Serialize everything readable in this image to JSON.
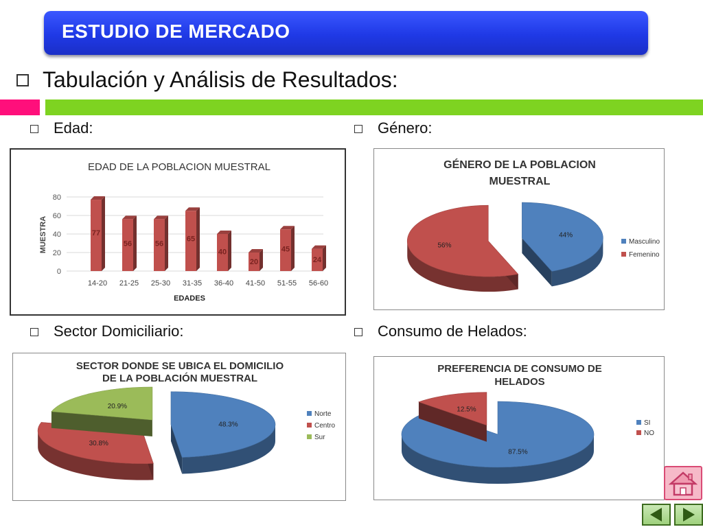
{
  "header": {
    "title": "ESTUDIO DE MERCADO"
  },
  "main": {
    "title": "Tabulación y Análisis de Resultados:"
  },
  "sections": {
    "edad": "Edad:",
    "genero": "Género:",
    "sector": "Sector Domiciliario:",
    "consumo": "Consumo de Helados:"
  },
  "chart_data": [
    {
      "type": "bar",
      "title": "EDAD DE LA POBLACION MUESTRAL",
      "xlabel": "EDADES",
      "ylabel": "MUESTRA",
      "categories": [
        "14-20",
        "21-25",
        "25-30",
        "31-35",
        "36-40",
        "41-50",
        "51-55",
        "56-60"
      ],
      "values": [
        77,
        56,
        56,
        65,
        40,
        20,
        45,
        24
      ],
      "ylim": [
        0,
        80
      ],
      "yticks": [
        0,
        20,
        40,
        60,
        80
      ],
      "grid": true,
      "color": "#c0504d"
    },
    {
      "type": "pie",
      "title_lines": [
        "GÉNERO DE LA POBLACION",
        "MUESTRAL"
      ],
      "slices": [
        {
          "label": "Masculino",
          "value": 44,
          "value_label": "44%",
          "color": "#4f81bd"
        },
        {
          "label": "Femenino",
          "value": 56,
          "value_label": "56%",
          "color": "#c0504d"
        }
      ],
      "legend": "right"
    },
    {
      "type": "pie",
      "title_lines": [
        "SECTOR DONDE SE UBICA EL DOMICILIO",
        "DE LA POBLACIÓN MUESTRAL"
      ],
      "slices": [
        {
          "label": "Norte",
          "value": 48.3,
          "value_label": "48.3%",
          "color": "#4f81bd"
        },
        {
          "label": "Centro",
          "value": 30.8,
          "value_label": "30.8%",
          "color": "#c0504d"
        },
        {
          "label": "Sur",
          "value": 20.9,
          "value_label": "20.9%",
          "color": "#9bbb59"
        }
      ],
      "legend": "right"
    },
    {
      "type": "pie",
      "title_lines": [
        "PREFERENCIA DE CONSUMO DE",
        "HELADOS"
      ],
      "slices": [
        {
          "label": "SI",
          "value": 87.5,
          "value_label": "87.5%",
          "color": "#4f81bd"
        },
        {
          "label": "NO",
          "value": 12.5,
          "value_label": "12.5%",
          "color": "#c0504d"
        }
      ],
      "legend": "right"
    }
  ],
  "nav": {
    "home_icon": "home-icon",
    "prev_icon": "arrow-left-icon",
    "next_icon": "arrow-right-icon"
  }
}
